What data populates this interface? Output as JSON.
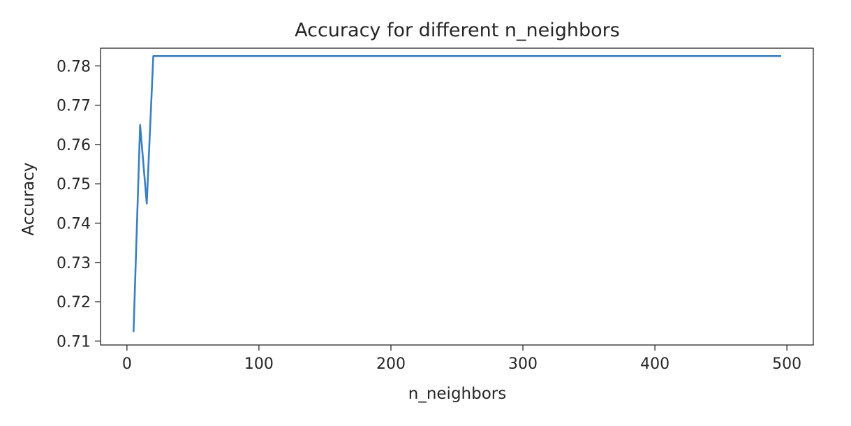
{
  "chart_data": {
    "type": "line",
    "title": "Accuracy for different n_neighbors",
    "xlabel": "n_neighbors",
    "ylabel": "Accuracy",
    "xlim": [
      -20,
      520
    ],
    "ylim": [
      0.709,
      0.7845
    ],
    "xticks": [
      0,
      100,
      200,
      300,
      400,
      500
    ],
    "xtick_labels": [
      "0",
      "100",
      "200",
      "300",
      "400",
      "500"
    ],
    "yticks": [
      0.71,
      0.72,
      0.73,
      0.74,
      0.75,
      0.76,
      0.77,
      0.78
    ],
    "ytick_labels": [
      "0.71",
      "0.72",
      "0.73",
      "0.74",
      "0.75",
      "0.76",
      "0.77",
      "0.78"
    ],
    "grid": false,
    "series": [
      {
        "color": "#3a7fbf",
        "x": [
          5,
          10,
          15,
          20,
          495
        ],
        "y": [
          0.7125,
          0.765,
          0.745,
          0.7825,
          0.7825
        ]
      }
    ]
  }
}
